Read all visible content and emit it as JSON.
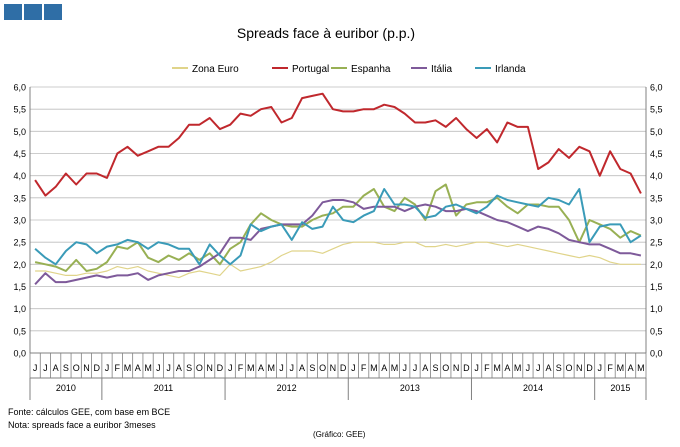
{
  "chart_data": {
    "type": "line",
    "title": "Spreads face à euribor (p.p.)",
    "xlabel": "",
    "ylabel": "",
    "ylim": [
      0,
      6
    ],
    "yticks": [
      "0,0",
      "0,5",
      "1,0",
      "1,5",
      "2,0",
      "2,5",
      "3,0",
      "3,5",
      "4,0",
      "4,5",
      "5,0",
      "5,5",
      "6,0"
    ],
    "grid": true,
    "legend_position": "top",
    "months": [
      "J",
      "J",
      "A",
      "S",
      "O",
      "N",
      "D",
      "J",
      "F",
      "M",
      "A",
      "M",
      "J",
      "J",
      "A",
      "S",
      "O",
      "N",
      "D",
      "J",
      "F",
      "M",
      "A",
      "M",
      "J",
      "J",
      "A",
      "S",
      "O",
      "N",
      "D",
      "J",
      "F",
      "M",
      "A",
      "M",
      "J",
      "J",
      "A",
      "S",
      "O",
      "N",
      "D",
      "J",
      "F",
      "M",
      "A",
      "M",
      "J",
      "J",
      "A",
      "S",
      "O",
      "N",
      "D",
      "J",
      "F",
      "M",
      "A",
      "M"
    ],
    "years": [
      {
        "label": "2010",
        "start": 0,
        "count": 7
      },
      {
        "label": "2011",
        "start": 7,
        "count": 12
      },
      {
        "label": "2012",
        "start": 19,
        "count": 12
      },
      {
        "label": "2013",
        "start": 31,
        "count": 12
      },
      {
        "label": "2014",
        "start": 43,
        "count": 12
      },
      {
        "label": "2015",
        "start": 55,
        "count": 5
      }
    ],
    "series": [
      {
        "name": "Zona Euro",
        "color": "#e0d48a",
        "values": [
          1.85,
          1.85,
          1.8,
          1.75,
          1.75,
          1.8,
          1.8,
          1.85,
          1.95,
          1.9,
          1.95,
          1.85,
          1.8,
          1.75,
          1.7,
          1.8,
          1.85,
          1.8,
          1.75,
          2.0,
          1.85,
          1.9,
          1.95,
          2.05,
          2.2,
          2.3,
          2.3,
          2.3,
          2.25,
          2.35,
          2.45,
          2.5,
          2.5,
          2.5,
          2.45,
          2.45,
          2.5,
          2.5,
          2.4,
          2.4,
          2.45,
          2.4,
          2.45,
          2.5,
          2.5,
          2.45,
          2.4,
          2.45,
          2.4,
          2.35,
          2.3,
          2.25,
          2.2,
          2.15,
          2.2,
          2.15,
          2.05,
          2.0,
          2.0,
          2.0
        ]
      },
      {
        "name": "Portugal",
        "color": "#c0282d",
        "values": [
          3.9,
          3.55,
          3.75,
          4.05,
          3.8,
          4.05,
          4.05,
          3.95,
          4.5,
          4.65,
          4.45,
          4.55,
          4.65,
          4.65,
          4.85,
          5.15,
          5.15,
          5.3,
          5.05,
          5.15,
          5.4,
          5.35,
          5.5,
          5.55,
          5.2,
          5.3,
          5.75,
          5.8,
          5.85,
          5.5,
          5.45,
          5.45,
          5.5,
          5.5,
          5.6,
          5.55,
          5.4,
          5.2,
          5.2,
          5.25,
          5.1,
          5.3,
          5.05,
          4.85,
          5.05,
          4.75,
          5.2,
          5.1,
          5.1,
          4.15,
          4.3,
          4.6,
          4.4,
          4.65,
          4.55,
          4.0,
          4.55,
          4.15,
          4.05,
          3.6
        ]
      },
      {
        "name": "Espanha",
        "color": "#98b054",
        "values": [
          2.05,
          2.0,
          1.95,
          1.85,
          2.1,
          1.85,
          1.9,
          2.05,
          2.4,
          2.35,
          2.5,
          2.15,
          2.05,
          2.2,
          2.1,
          2.25,
          2.1,
          2.25,
          2.0,
          2.35,
          2.5,
          2.9,
          3.15,
          3.0,
          2.9,
          2.85,
          2.85,
          3.0,
          3.1,
          3.15,
          3.3,
          3.3,
          3.55,
          3.7,
          3.3,
          3.2,
          3.5,
          3.35,
          3.0,
          3.65,
          3.8,
          3.1,
          3.35,
          3.4,
          3.4,
          3.5,
          3.3,
          3.15,
          3.35,
          3.35,
          3.3,
          3.3,
          3.0,
          2.5,
          3.0,
          2.9,
          2.8,
          2.6,
          2.75,
          2.65
        ]
      },
      {
        "name": "Itália",
        "color": "#7e5a9a",
        "values": [
          1.55,
          1.8,
          1.6,
          1.6,
          1.65,
          1.7,
          1.75,
          1.7,
          1.75,
          1.75,
          1.8,
          1.65,
          1.75,
          1.8,
          1.85,
          1.85,
          1.95,
          2.1,
          2.25,
          2.6,
          2.6,
          2.55,
          2.8,
          2.85,
          2.9,
          2.9,
          2.9,
          3.1,
          3.4,
          3.45,
          3.45,
          3.4,
          3.25,
          3.3,
          3.3,
          3.3,
          3.2,
          3.3,
          3.35,
          3.3,
          3.2,
          3.2,
          3.25,
          3.2,
          3.1,
          3.0,
          2.95,
          2.85,
          2.75,
          2.85,
          2.8,
          2.7,
          2.55,
          2.5,
          2.45,
          2.45,
          2.35,
          2.25,
          2.25,
          2.2
        ]
      },
      {
        "name": "Irlanda",
        "color": "#3a9bb8",
        "values": [
          2.35,
          2.15,
          2.0,
          2.3,
          2.5,
          2.45,
          2.25,
          2.4,
          2.45,
          2.55,
          2.5,
          2.35,
          2.5,
          2.45,
          2.35,
          2.35,
          2.0,
          2.45,
          2.2,
          2.0,
          2.2,
          2.9,
          2.75,
          2.85,
          2.9,
          2.55,
          2.95,
          2.8,
          2.85,
          3.3,
          3.0,
          2.95,
          3.1,
          3.2,
          3.7,
          3.35,
          3.35,
          3.3,
          3.05,
          3.1,
          3.3,
          3.35,
          3.25,
          3.15,
          3.3,
          3.55,
          3.45,
          3.4,
          3.35,
          3.3,
          3.5,
          3.45,
          3.35,
          3.7,
          2.5,
          2.85,
          2.9,
          2.9,
          2.5,
          2.65
        ]
      }
    ]
  },
  "footnotes": {
    "source": "Fonte: cálculos GEE, com base em BCE",
    "note": "Nota: spreads face a euribor 3meses",
    "credit": "(Gráfico: GEE)"
  }
}
